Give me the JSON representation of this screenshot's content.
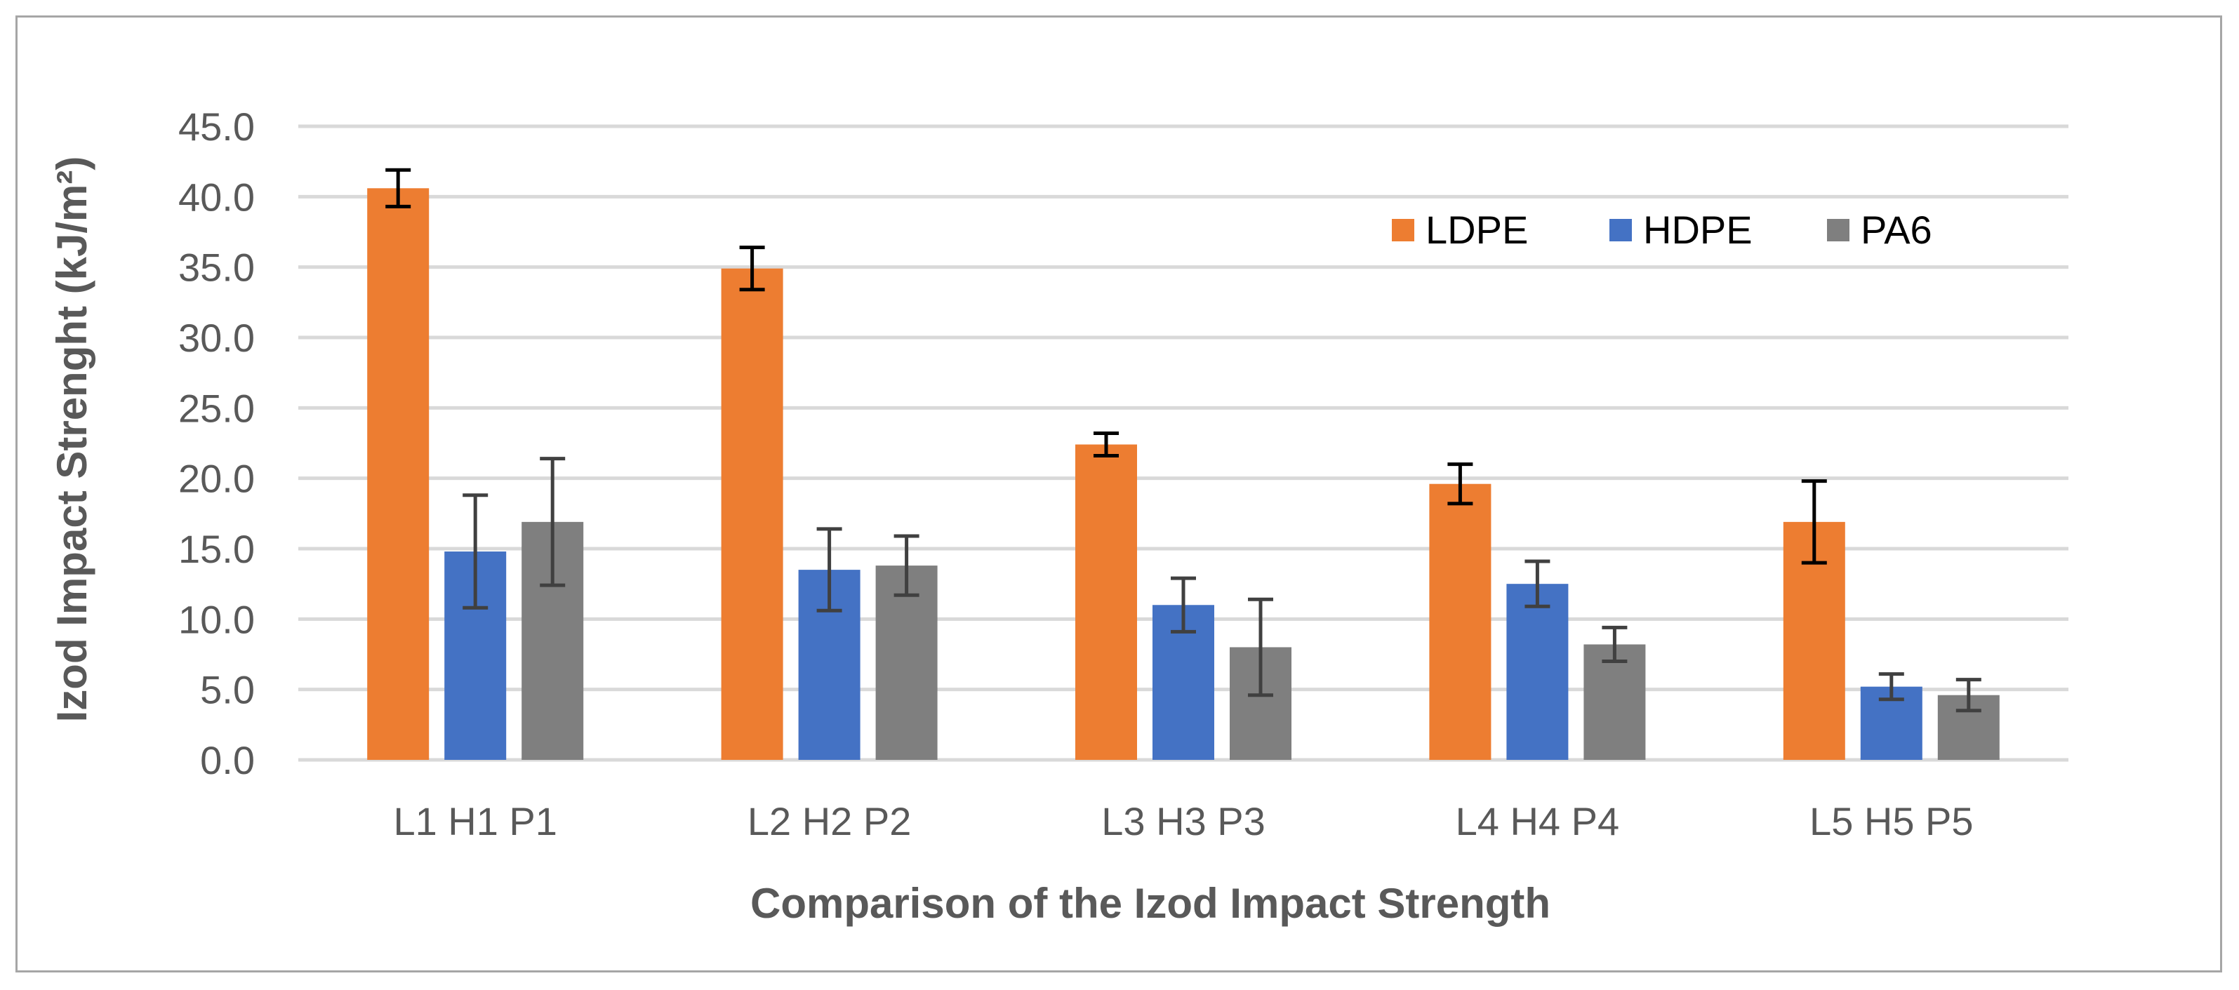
{
  "chart_data": {
    "type": "bar",
    "xlabel": "Comparison of the Izod Impact Strength",
    "ylabel": "Izod Impact Strenght (kJ/m²)",
    "ylim": [
      0,
      45
    ],
    "yticks": [
      "0.0",
      "5.0",
      "10.0",
      "15.0",
      "20.0",
      "25.0",
      "30.0",
      "35.0",
      "40.0",
      "45.0"
    ],
    "ytick_values": [
      0,
      5,
      10,
      15,
      20,
      25,
      30,
      35,
      40,
      45
    ],
    "grid": true,
    "legend_position": "top-right",
    "categories": [
      "L1 H1 P1",
      "L2 H2 P2",
      "L3 H3 P3",
      "L4 H4 P4",
      "L5 H5 P5"
    ],
    "series": [
      {
        "name": "LDPE",
        "color": "#ed7d31",
        "error_color": "#000000",
        "values": [
          40.6,
          34.9,
          22.4,
          19.6,
          16.9
        ],
        "errors": [
          1.3,
          1.5,
          0.8,
          1.4,
          2.9
        ]
      },
      {
        "name": "HDPE",
        "color": "#4472c4",
        "error_color": "#404040",
        "values": [
          14.8,
          13.5,
          11.0,
          12.5,
          5.2
        ],
        "errors": [
          4.0,
          2.9,
          1.9,
          1.6,
          0.9
        ]
      },
      {
        "name": "PA6",
        "color": "#7f7f7f",
        "error_color": "#404040",
        "values": [
          16.9,
          13.8,
          8.0,
          8.2,
          4.6
        ],
        "errors": [
          4.5,
          2.1,
          3.4,
          1.2,
          1.1
        ]
      }
    ]
  }
}
